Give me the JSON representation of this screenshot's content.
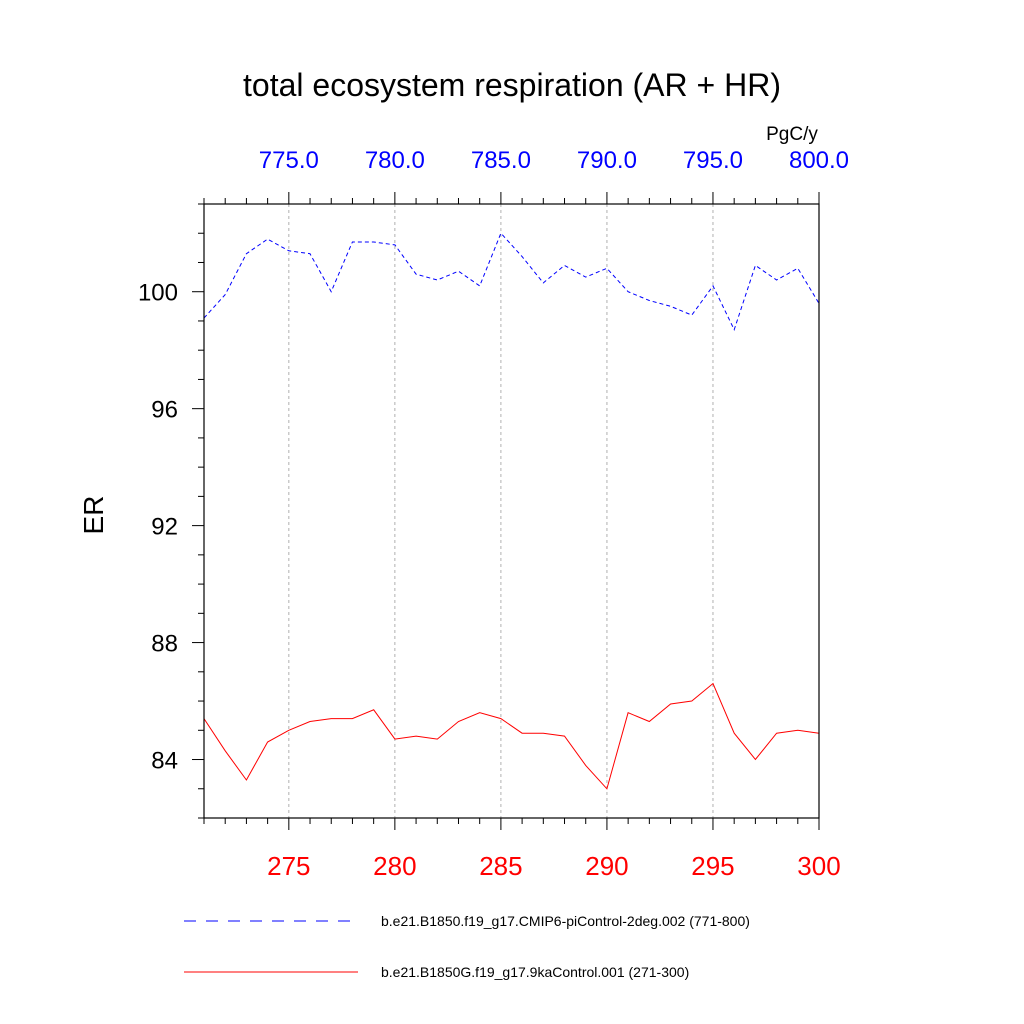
{
  "chart_data": {
    "type": "line",
    "title": "total ecosystem respiration (AR + HR)",
    "units": "PgC/y",
    "ylabel": "ER",
    "ylim": [
      82.0,
      103.0
    ],
    "yticks": [
      84,
      88,
      92,
      96,
      100
    ],
    "ytick_labels": [
      "84",
      "88",
      "92",
      "96",
      "100"
    ],
    "bottom_axis": {
      "range": [
        271,
        300
      ],
      "ticks": [
        275,
        280,
        285,
        290,
        295,
        300
      ],
      "tick_labels": [
        "275",
        "280",
        "285",
        "290",
        "295",
        "300"
      ],
      "color": "#ff0000"
    },
    "top_axis": {
      "range": [
        771,
        800
      ],
      "ticks": [
        775,
        780,
        785,
        790,
        795,
        800
      ],
      "tick_labels": [
        "775.0",
        "780.0",
        "785.0",
        "790.0",
        "795.0",
        "800.0"
      ],
      "color": "#0000ff"
    },
    "grid": "vertical dashed at major ticks",
    "legend_position": "bottom",
    "series": [
      {
        "name": "b.e21.B1850.f19_g17.CMIP6-piControl-2deg.002 (771-800)",
        "axis": "top",
        "color": "#0000ff",
        "style": "dashed",
        "x": [
          771,
          772,
          773,
          774,
          775,
          776,
          777,
          778,
          779,
          780,
          781,
          782,
          783,
          784,
          785,
          786,
          787,
          788,
          789,
          790,
          791,
          792,
          793,
          794,
          795,
          796,
          797,
          798,
          799,
          800
        ],
        "values": [
          99.1,
          99.9,
          101.3,
          101.8,
          101.4,
          101.3,
          100.0,
          101.7,
          101.7,
          101.6,
          100.6,
          100.4,
          100.7,
          100.2,
          102.0,
          101.2,
          100.3,
          100.9,
          100.5,
          100.8,
          100.0,
          99.7,
          99.5,
          99.2,
          100.2,
          98.7,
          100.9,
          100.4,
          100.8,
          99.6
        ]
      },
      {
        "name": "b.e21.B1850G.f19_g17.9kaControl.001 (271-300)",
        "axis": "bottom",
        "color": "#ff0000",
        "style": "solid",
        "x": [
          271,
          272,
          273,
          274,
          275,
          276,
          277,
          278,
          279,
          280,
          281,
          282,
          283,
          284,
          285,
          286,
          287,
          288,
          289,
          290,
          291,
          292,
          293,
          294,
          295,
          296,
          297,
          298,
          299,
          300
        ],
        "values": [
          85.4,
          84.3,
          83.3,
          84.6,
          85.0,
          85.3,
          85.4,
          85.4,
          85.7,
          84.7,
          84.8,
          84.7,
          85.3,
          85.6,
          85.4,
          84.9,
          84.9,
          84.8,
          83.8,
          83.0,
          85.6,
          85.3,
          85.9,
          86.0,
          86.6,
          84.9,
          84.0,
          84.9,
          85.0,
          84.9
        ]
      }
    ]
  }
}
